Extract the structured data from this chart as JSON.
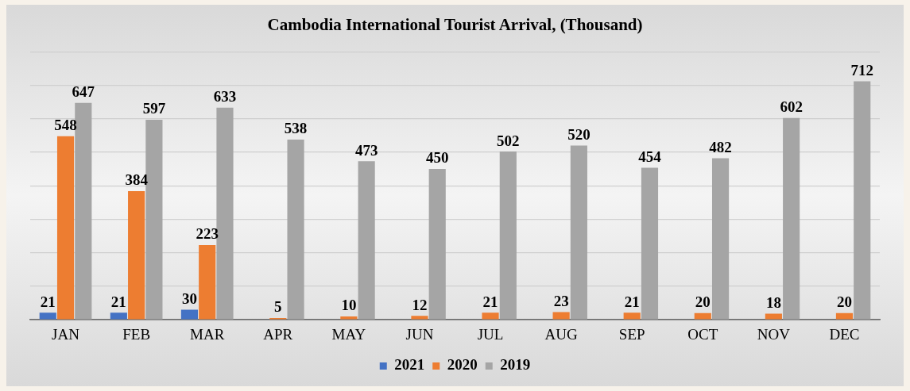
{
  "chart_data": {
    "type": "bar",
    "title": "Cambodia International Tourist Arrival, (Thousand)",
    "categories": [
      "JAN",
      "FEB",
      "MAR",
      "APR",
      "MAY",
      "JUN",
      "JUL",
      "AUG",
      "SEP",
      "OCT",
      "NOV",
      "DEC"
    ],
    "series": [
      {
        "name": "2021",
        "color": "#4472c4",
        "values": [
          21,
          21,
          30,
          null,
          null,
          null,
          null,
          null,
          null,
          null,
          null,
          null
        ]
      },
      {
        "name": "2020",
        "color": "#ed7d31",
        "values": [
          548,
          384,
          223,
          5,
          10,
          12,
          21,
          23,
          21,
          20,
          18,
          20
        ]
      },
      {
        "name": "2019",
        "color": "#a5a5a5",
        "values": [
          647,
          597,
          633,
          538,
          473,
          450,
          502,
          520,
          454,
          482,
          602,
          712
        ]
      }
    ],
    "ylim": [
      0,
      800
    ],
    "yticks": [
      {
        "value": 0,
        "label": null
      },
      {
        "value": 100,
        "label": null
      },
      {
        "value": 200,
        "label": null
      },
      {
        "value": 300,
        "label": null
      },
      {
        "value": 400,
        "label": null
      },
      {
        "value": 500,
        "label": null
      },
      {
        "value": 600,
        "label": null
      },
      {
        "value": 700,
        "label": null
      },
      {
        "value": 800,
        "label": null
      }
    ],
    "tick_labels": "x",
    "grid": "y",
    "legend": "bottom",
    "data_labels": true
  }
}
